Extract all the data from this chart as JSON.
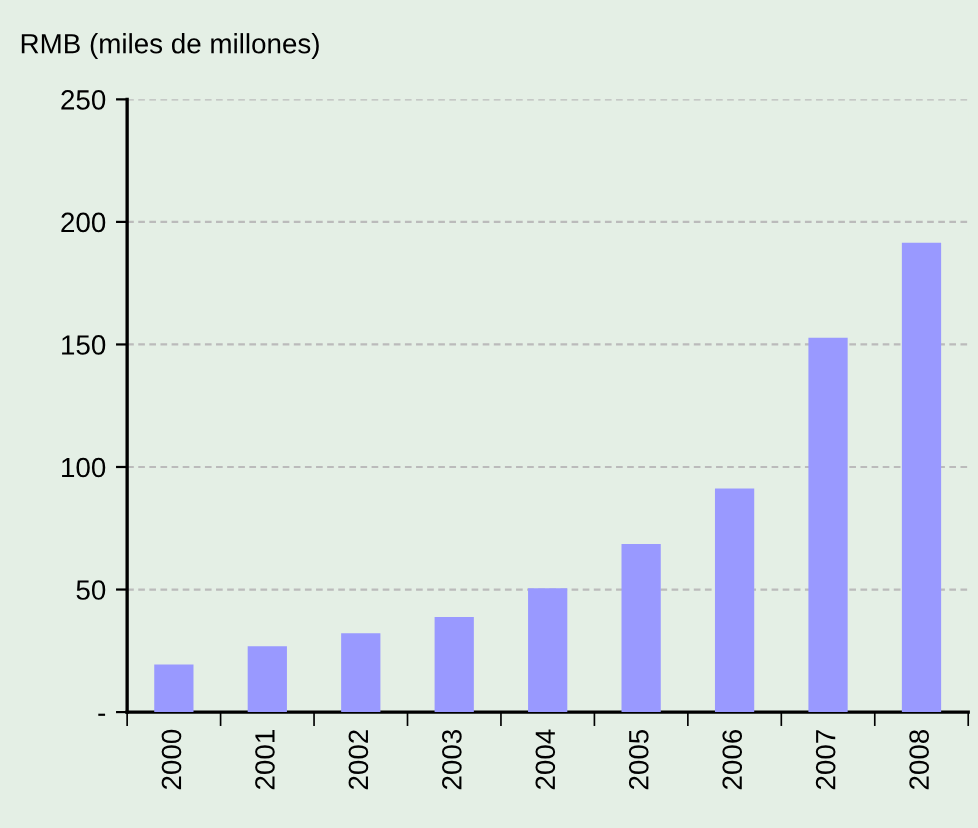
{
  "chart_data": {
    "type": "bar",
    "title": "RMB (miles de millones)",
    "categories": [
      "2000",
      "2001",
      "2002",
      "2003",
      "2004",
      "2005",
      "2006",
      "2007",
      "2008"
    ],
    "values": [
      19.4,
      26.9,
      32.2,
      38.8,
      50.5,
      68.6,
      91.2,
      152.7,
      191.5
    ],
    "color": "#9999ff",
    "ylim": [
      0,
      250
    ],
    "yticks": [
      {
        "value": 0,
        "label": "-"
      },
      50,
      100,
      150,
      200,
      250
    ],
    "grid": "y"
  }
}
